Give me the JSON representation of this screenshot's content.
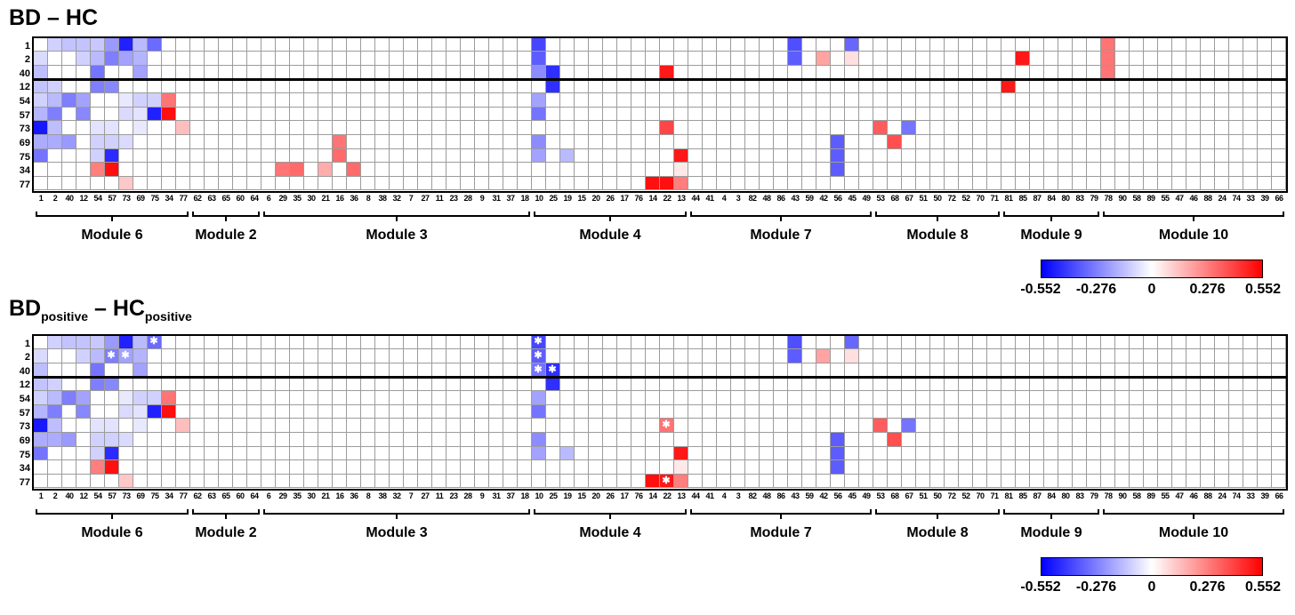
{
  "chart_data": {
    "type": "heatmap",
    "value_range": [
      -0.552,
      0.552
    ],
    "colormap": {
      "negative": "#0000ff",
      "zero": "#ffffff",
      "positive": "#ff0000"
    },
    "gridline_color": "#9c9c9c",
    "border_color": "#000000",
    "label_color": "#000000",
    "star_color": "#ffffff",
    "row_labels": [
      "1",
      "2",
      "40",
      "12",
      "54",
      "57",
      "73",
      "69",
      "75",
      "34",
      "77"
    ],
    "row_separator_after": 3,
    "col_labels": [
      "1",
      "2",
      "40",
      "12",
      "54",
      "57",
      "73",
      "69",
      "75",
      "34",
      "77",
      "62",
      "63",
      "65",
      "60",
      "64",
      "6",
      "29",
      "35",
      "30",
      "21",
      "16",
      "36",
      "8",
      "38",
      "32",
      "7",
      "27",
      "11",
      "23",
      "28",
      "9",
      "31",
      "37",
      "18",
      "10",
      "25",
      "19",
      "15",
      "20",
      "26",
      "17",
      "76",
      "14",
      "22",
      "13",
      "44",
      "41",
      "4",
      "3",
      "82",
      "48",
      "86",
      "43",
      "59",
      "42",
      "56",
      "45",
      "49",
      "53",
      "68",
      "67",
      "51",
      "50",
      "72",
      "52",
      "70",
      "71",
      "81",
      "85",
      "87",
      "84",
      "80",
      "83",
      "79",
      "78",
      "90",
      "58",
      "89",
      "55",
      "47",
      "46",
      "88",
      "24",
      "74",
      "33",
      "39",
      "66"
    ],
    "modules": [
      {
        "label": "Module 6",
        "start": 1,
        "end": 11
      },
      {
        "label": "Module 2",
        "start": 12,
        "end": 16
      },
      {
        "label": "Module 3",
        "start": 17,
        "end": 35
      },
      {
        "label": "Module 4",
        "start": 36,
        "end": 46
      },
      {
        "label": "Module 7",
        "start": 47,
        "end": 59
      },
      {
        "label": "Module 8",
        "start": 60,
        "end": 68
      },
      {
        "label": "Module 9",
        "start": 69,
        "end": 75
      },
      {
        "label": "Module 10",
        "start": 76,
        "end": 88
      }
    ],
    "colorbar_ticks": [
      "-0.552",
      "-0.276",
      "0",
      "0.276",
      "0.552"
    ],
    "panels": [
      {
        "title_parts": {
          "main1": "BD",
          "sub1": "",
          "mid": " – ",
          "main2": "HC",
          "sub2": ""
        },
        "cells": [
          [
            1,
            2,
            -0.1
          ],
          [
            1,
            3,
            -0.13
          ],
          [
            1,
            4,
            -0.13
          ],
          [
            1,
            5,
            -0.12
          ],
          [
            1,
            6,
            -0.22
          ],
          [
            1,
            7,
            -0.48
          ],
          [
            1,
            8,
            -0.15
          ],
          [
            1,
            9,
            -0.32
          ],
          [
            1,
            36,
            -0.4
          ],
          [
            1,
            54,
            -0.38
          ],
          [
            1,
            58,
            -0.33
          ],
          [
            1,
            76,
            0.3
          ],
          [
            2,
            1,
            -0.08
          ],
          [
            2,
            4,
            -0.1
          ],
          [
            2,
            5,
            -0.15
          ],
          [
            2,
            6,
            -0.28
          ],
          [
            2,
            7,
            -0.2
          ],
          [
            2,
            8,
            -0.16
          ],
          [
            2,
            36,
            -0.35
          ],
          [
            2,
            54,
            -0.35
          ],
          [
            2,
            56,
            0.2
          ],
          [
            2,
            58,
            0.07
          ],
          [
            2,
            70,
            0.5
          ],
          [
            2,
            76,
            0.3
          ],
          [
            3,
            1,
            -0.14
          ],
          [
            3,
            5,
            -0.3
          ],
          [
            3,
            8,
            -0.2
          ],
          [
            3,
            36,
            -0.25
          ],
          [
            3,
            37,
            -0.45
          ],
          [
            3,
            45,
            0.5
          ],
          [
            3,
            76,
            0.3
          ],
          [
            4,
            1,
            -0.13
          ],
          [
            4,
            2,
            -0.1
          ],
          [
            4,
            5,
            -0.28
          ],
          [
            4,
            6,
            -0.26
          ],
          [
            4,
            37,
            -0.45
          ],
          [
            4,
            69,
            0.5
          ],
          [
            5,
            1,
            -0.1
          ],
          [
            5,
            2,
            -0.15
          ],
          [
            5,
            3,
            -0.28
          ],
          [
            5,
            4,
            -0.2
          ],
          [
            5,
            7,
            -0.05
          ],
          [
            5,
            8,
            -0.1
          ],
          [
            5,
            9,
            -0.1
          ],
          [
            5,
            10,
            0.3
          ],
          [
            5,
            36,
            -0.2
          ],
          [
            6,
            1,
            -0.16
          ],
          [
            6,
            2,
            -0.28
          ],
          [
            6,
            4,
            -0.26
          ],
          [
            6,
            7,
            -0.08
          ],
          [
            6,
            8,
            -0.06
          ],
          [
            6,
            9,
            -0.48
          ],
          [
            6,
            10,
            0.52
          ],
          [
            6,
            36,
            -0.3
          ],
          [
            7,
            1,
            -0.5
          ],
          [
            7,
            2,
            -0.14
          ],
          [
            7,
            5,
            -0.06
          ],
          [
            7,
            6,
            -0.06
          ],
          [
            7,
            8,
            -0.05
          ],
          [
            7,
            11,
            0.14
          ],
          [
            7,
            45,
            0.4
          ],
          [
            7,
            60,
            0.35
          ],
          [
            7,
            62,
            -0.3
          ],
          [
            8,
            1,
            -0.18
          ],
          [
            8,
            2,
            -0.18
          ],
          [
            8,
            3,
            -0.22
          ],
          [
            8,
            5,
            -0.1
          ],
          [
            8,
            6,
            -0.1
          ],
          [
            8,
            7,
            -0.08
          ],
          [
            8,
            22,
            0.3
          ],
          [
            8,
            36,
            -0.25
          ],
          [
            8,
            57,
            -0.35
          ],
          [
            8,
            61,
            0.38
          ],
          [
            9,
            1,
            -0.3
          ],
          [
            9,
            5,
            -0.1
          ],
          [
            9,
            6,
            -0.46
          ],
          [
            9,
            22,
            0.32
          ],
          [
            9,
            36,
            -0.2
          ],
          [
            9,
            38,
            -0.15
          ],
          [
            9,
            46,
            0.5
          ],
          [
            9,
            57,
            -0.35
          ],
          [
            10,
            5,
            0.28
          ],
          [
            10,
            6,
            0.52
          ],
          [
            10,
            18,
            0.3
          ],
          [
            10,
            19,
            0.32
          ],
          [
            10,
            21,
            0.18
          ],
          [
            10,
            23,
            0.32
          ],
          [
            10,
            46,
            0.05
          ],
          [
            10,
            57,
            -0.35
          ],
          [
            11,
            7,
            0.12
          ],
          [
            11,
            44,
            0.52
          ],
          [
            11,
            45,
            0.52
          ],
          [
            11,
            46,
            0.28
          ]
        ]
      },
      {
        "title_parts": {
          "main1": "BD",
          "sub1": "positive",
          "mid": " – ",
          "main2": "HC",
          "sub2": "positive"
        },
        "cells": [
          [
            1,
            2,
            -0.1
          ],
          [
            1,
            3,
            -0.13
          ],
          [
            1,
            4,
            -0.13
          ],
          [
            1,
            5,
            -0.12
          ],
          [
            1,
            6,
            -0.22
          ],
          [
            1,
            7,
            -0.48
          ],
          [
            1,
            8,
            -0.15
          ],
          [
            1,
            9,
            -0.32,
            1
          ],
          [
            1,
            36,
            -0.4,
            1
          ],
          [
            1,
            54,
            -0.38
          ],
          [
            1,
            58,
            -0.33
          ],
          [
            2,
            1,
            -0.08
          ],
          [
            2,
            4,
            -0.1
          ],
          [
            2,
            5,
            -0.15
          ],
          [
            2,
            6,
            -0.28,
            1
          ],
          [
            2,
            7,
            -0.2,
            1
          ],
          [
            2,
            8,
            -0.16
          ],
          [
            2,
            36,
            -0.35,
            1
          ],
          [
            2,
            54,
            -0.35
          ],
          [
            2,
            56,
            0.2
          ],
          [
            2,
            58,
            0.07
          ],
          [
            3,
            1,
            -0.14
          ],
          [
            3,
            5,
            -0.3
          ],
          [
            3,
            8,
            -0.2
          ],
          [
            3,
            36,
            -0.3,
            1
          ],
          [
            3,
            37,
            -0.45,
            1
          ],
          [
            4,
            1,
            -0.13
          ],
          [
            4,
            2,
            -0.1
          ],
          [
            4,
            5,
            -0.28
          ],
          [
            4,
            6,
            -0.26
          ],
          [
            4,
            37,
            -0.45
          ],
          [
            5,
            1,
            -0.1
          ],
          [
            5,
            2,
            -0.15
          ],
          [
            5,
            3,
            -0.28
          ],
          [
            5,
            4,
            -0.2
          ],
          [
            5,
            7,
            -0.05
          ],
          [
            5,
            8,
            -0.1
          ],
          [
            5,
            9,
            -0.1
          ],
          [
            5,
            10,
            0.3
          ],
          [
            5,
            36,
            -0.2
          ],
          [
            6,
            1,
            -0.16
          ],
          [
            6,
            2,
            -0.28
          ],
          [
            6,
            4,
            -0.26
          ],
          [
            6,
            7,
            -0.08
          ],
          [
            6,
            8,
            -0.06
          ],
          [
            6,
            9,
            -0.48
          ],
          [
            6,
            10,
            0.52
          ],
          [
            6,
            36,
            -0.3
          ],
          [
            7,
            1,
            -0.5
          ],
          [
            7,
            2,
            -0.14
          ],
          [
            7,
            5,
            -0.06
          ],
          [
            7,
            6,
            -0.06
          ],
          [
            7,
            8,
            -0.05
          ],
          [
            7,
            11,
            0.14
          ],
          [
            7,
            45,
            0.3,
            1
          ],
          [
            7,
            60,
            0.35
          ],
          [
            7,
            62,
            -0.3
          ],
          [
            8,
            1,
            -0.18
          ],
          [
            8,
            2,
            -0.18
          ],
          [
            8,
            3,
            -0.22
          ],
          [
            8,
            5,
            -0.1
          ],
          [
            8,
            6,
            -0.1
          ],
          [
            8,
            7,
            -0.08
          ],
          [
            8,
            36,
            -0.25
          ],
          [
            8,
            57,
            -0.35
          ],
          [
            8,
            61,
            0.38
          ],
          [
            9,
            1,
            -0.3
          ],
          [
            9,
            5,
            -0.1
          ],
          [
            9,
            6,
            -0.46
          ],
          [
            9,
            36,
            -0.2
          ],
          [
            9,
            38,
            -0.15
          ],
          [
            9,
            46,
            0.5
          ],
          [
            9,
            57,
            -0.35
          ],
          [
            10,
            5,
            0.28
          ],
          [
            10,
            6,
            0.52
          ],
          [
            10,
            46,
            0.05
          ],
          [
            10,
            57,
            -0.35
          ],
          [
            11,
            7,
            0.12
          ],
          [
            11,
            44,
            0.52
          ],
          [
            11,
            45,
            0.5,
            1
          ],
          [
            11,
            46,
            0.28
          ]
        ]
      }
    ]
  }
}
